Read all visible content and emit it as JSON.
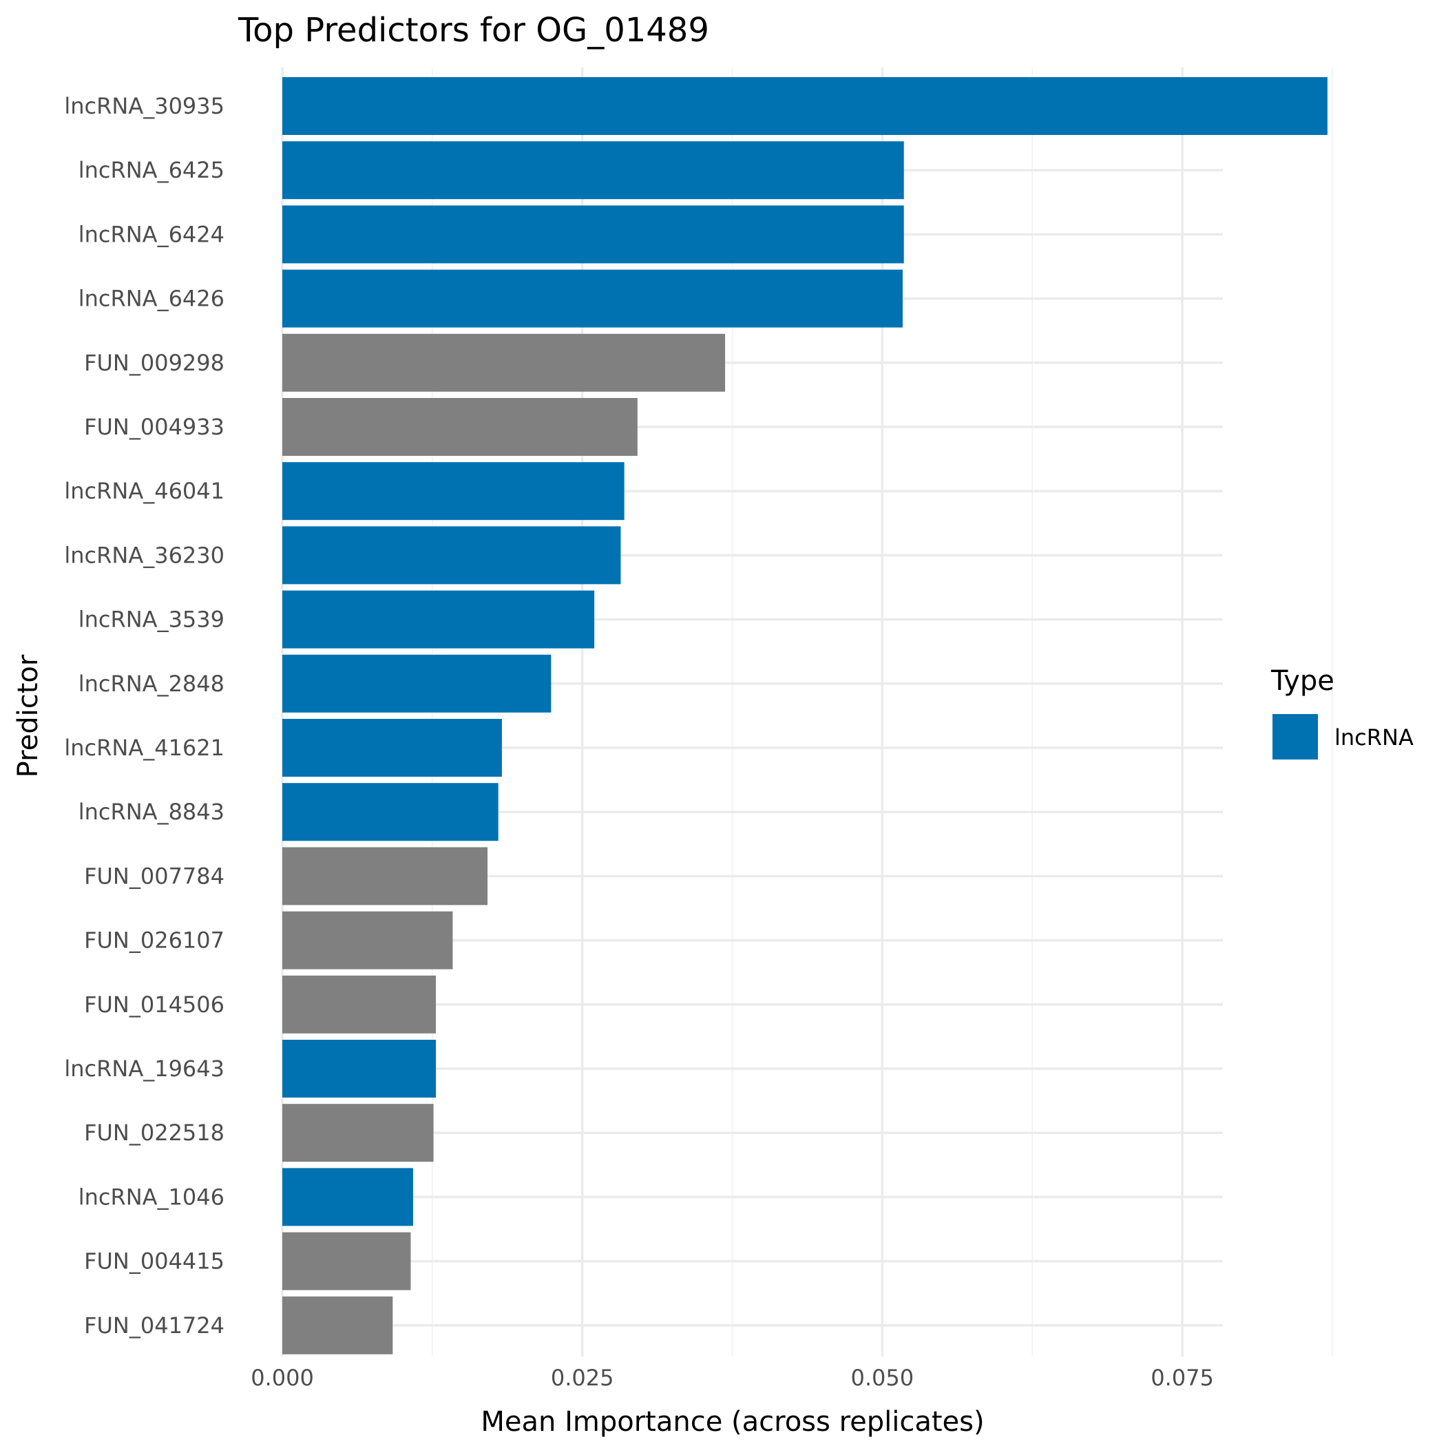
{
  "chart_data": {
    "type": "bar",
    "orientation": "horizontal",
    "title": "Top Predictors for OG_01489",
    "xlabel": "Mean Importance (across replicates)",
    "ylabel": "Predictor",
    "xlim": [
      0,
      0.0915
    ],
    "x_ticks": [
      0,
      0.025,
      0.05,
      0.075
    ],
    "x_tick_labels": [
      "0.000",
      "0.025",
      "0.050",
      "0.075"
    ],
    "grid": true,
    "legend": {
      "title": "Type",
      "placement": "right",
      "entries": [
        {
          "label": "lncRNA",
          "color": "#0072B2"
        }
      ]
    },
    "colors": {
      "lncRNA": "#0072B2",
      "other": "#808080"
    },
    "categories": [
      "lncRNA_30935",
      "lncRNA_6425",
      "lncRNA_6424",
      "lncRNA_6426",
      "FUN_009298",
      "FUN_004933",
      "lncRNA_46041",
      "lncRNA_36230",
      "lncRNA_3539",
      "lncRNA_2848",
      "lncRNA_41621",
      "lncRNA_8843",
      "FUN_007784",
      "FUN_026107",
      "FUN_014506",
      "lncRNA_19643",
      "FUN_022518",
      "lncRNA_1046",
      "FUN_004415",
      "FUN_041724"
    ],
    "values": [
      0.0871,
      0.0518,
      0.0518,
      0.0517,
      0.0369,
      0.0296,
      0.0285,
      0.0282,
      0.026,
      0.0224,
      0.0183,
      0.018,
      0.0171,
      0.0142,
      0.0128,
      0.0128,
      0.0126,
      0.0109,
      0.0107,
      0.0092
    ],
    "types": [
      "lncRNA",
      "lncRNA",
      "lncRNA",
      "lncRNA",
      "other",
      "other",
      "lncRNA",
      "lncRNA",
      "lncRNA",
      "lncRNA",
      "lncRNA",
      "lncRNA",
      "other",
      "other",
      "other",
      "lncRNA",
      "other",
      "lncRNA",
      "other",
      "other"
    ]
  }
}
